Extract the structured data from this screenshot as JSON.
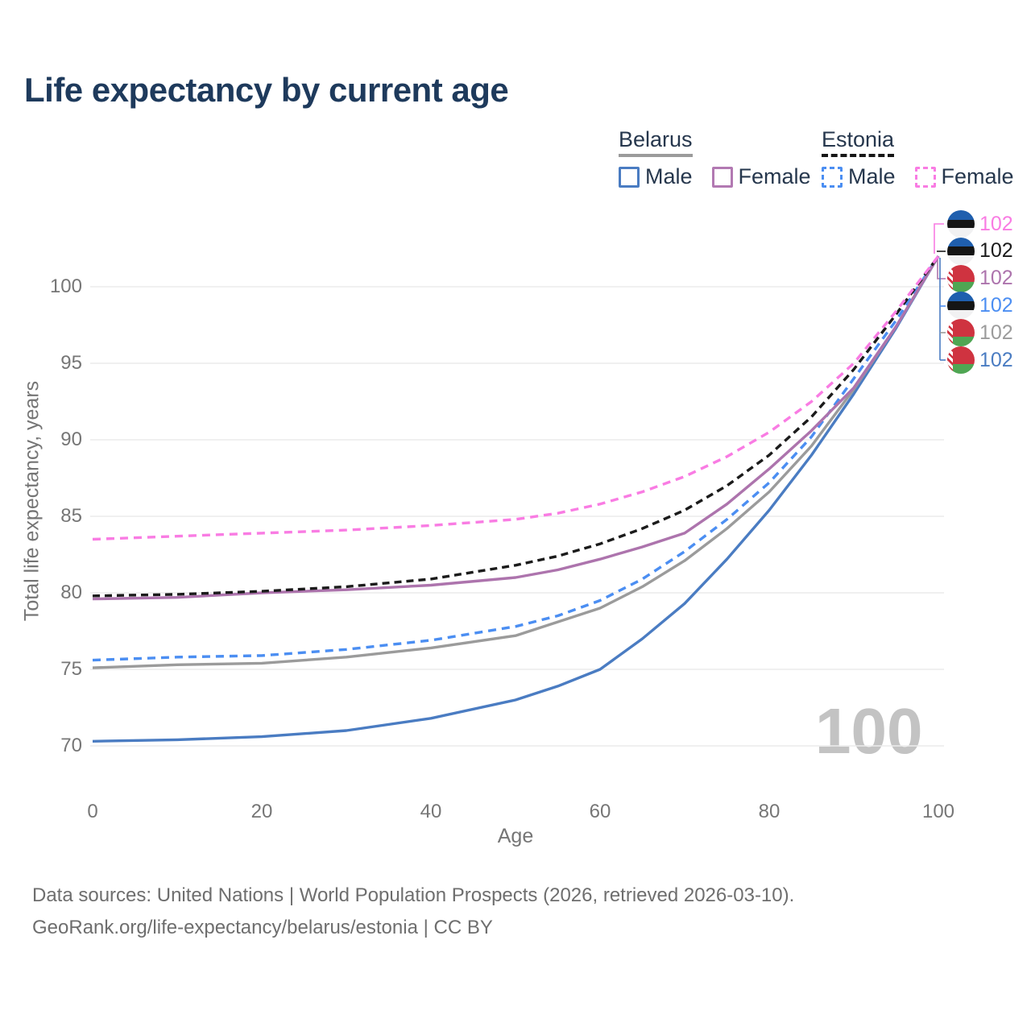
{
  "title": "Life expectancy by current age",
  "watermark": "100",
  "legend": {
    "groups": [
      {
        "country": "Belarus",
        "underline": "solid",
        "underline_color": "#9b9b9b",
        "items": [
          {
            "label": "Male",
            "color": "#4a7cc2",
            "dash": "solid"
          },
          {
            "label": "Female",
            "color": "#b279b2",
            "dash": "solid"
          }
        ]
      },
      {
        "country": "Estonia",
        "underline": "dashed",
        "underline_color": "#161616",
        "items": [
          {
            "label": "Male",
            "color": "#4b8ef2",
            "dash": "dashed"
          },
          {
            "label": "Female",
            "color": "#f97ce3",
            "dash": "dashed"
          }
        ]
      }
    ]
  },
  "chart_data": {
    "type": "line",
    "xlabel": "Age",
    "ylabel": "Total life expectancy, years",
    "x_ticks": [
      0,
      20,
      40,
      60,
      80,
      100
    ],
    "y_ticks": [
      100,
      95,
      90,
      85,
      80,
      75,
      70
    ],
    "xlim": [
      0,
      100
    ],
    "ylim": [
      68,
      103
    ],
    "grid": "horizontal",
    "x": [
      0,
      10,
      20,
      30,
      40,
      50,
      55,
      60,
      65,
      70,
      75,
      80,
      85,
      90,
      95,
      100
    ],
    "series": [
      {
        "name": "Estonia Female",
        "country": "estonia",
        "color": "#f97ce3",
        "dash": "dashed",
        "values": [
          83.5,
          83.7,
          83.9,
          84.1,
          84.4,
          84.8,
          85.2,
          85.8,
          86.6,
          87.6,
          88.9,
          90.5,
          92.5,
          95.0,
          98.4,
          102
        ]
      },
      {
        "name": "Estonia",
        "country": "estonia",
        "color": "#1b1b1b",
        "dash": "dashed",
        "values": [
          79.8,
          79.9,
          80.1,
          80.4,
          80.9,
          81.8,
          82.4,
          83.2,
          84.2,
          85.4,
          87.0,
          89.0,
          91.5,
          94.6,
          98.2,
          102
        ]
      },
      {
        "name": "Belarus Female",
        "country": "belarus",
        "color": "#ad74ad",
        "dash": "solid",
        "values": [
          79.6,
          79.7,
          80.0,
          80.2,
          80.5,
          81.0,
          81.5,
          82.2,
          83.0,
          83.9,
          85.8,
          88.1,
          90.6,
          93.4,
          97.4,
          102
        ]
      },
      {
        "name": "Estonia Male",
        "country": "estonia",
        "color": "#4b8ef2",
        "dash": "dashed",
        "values": [
          75.6,
          75.8,
          75.9,
          76.3,
          76.9,
          77.8,
          78.5,
          79.5,
          80.9,
          82.7,
          84.8,
          87.2,
          90.2,
          94.0,
          97.8,
          102
        ]
      },
      {
        "name": "Belarus",
        "country": "belarus",
        "color": "#9b9b9b",
        "dash": "solid",
        "values": [
          75.1,
          75.3,
          75.4,
          75.8,
          76.4,
          77.2,
          78.1,
          79.0,
          80.4,
          82.1,
          84.2,
          86.6,
          89.6,
          93.3,
          97.4,
          102
        ]
      },
      {
        "name": "Belarus Male",
        "country": "belarus",
        "color": "#4a7cc2",
        "dash": "solid",
        "values": [
          70.3,
          70.4,
          70.6,
          71.0,
          71.8,
          73.0,
          73.9,
          75.0,
          77.0,
          79.3,
          82.2,
          85.4,
          89.0,
          93.0,
          97.3,
          102
        ]
      }
    ]
  },
  "end_labels": [
    {
      "value": "102",
      "country": "estonia",
      "series": "Estonia Female",
      "color": "#f97ce3"
    },
    {
      "value": "102",
      "country": "estonia",
      "series": "Estonia",
      "color": "#1b1b1b"
    },
    {
      "value": "102",
      "country": "belarus",
      "series": "Belarus Female",
      "color": "#ad74ad"
    },
    {
      "value": "102",
      "country": "estonia",
      "series": "Estonia Male",
      "color": "#4b8ef2"
    },
    {
      "value": "102",
      "country": "belarus",
      "series": "Belarus",
      "color": "#9b9b9b"
    },
    {
      "value": "102",
      "country": "belarus",
      "series": "Belarus Male",
      "color": "#4a7cc2"
    }
  ],
  "footer": {
    "line1": "Data sources: United Nations | World Population Prospects (2026, retrieved 2026-03-10).",
    "line2": "GeoRank.org/life-expectancy/belarus/estonia | CC BY"
  }
}
